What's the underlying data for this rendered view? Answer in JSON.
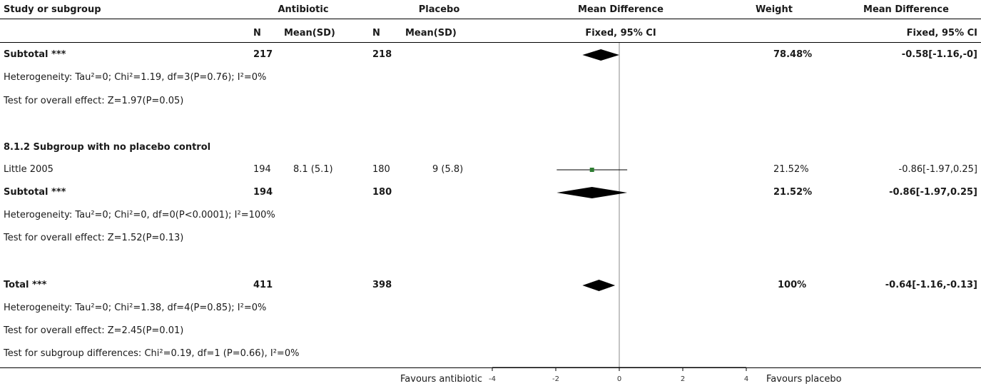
{
  "header": {
    "study_label": "Study or subgroup",
    "group1": "Antibiotic",
    "group2": "Placebo",
    "effect_title": "Mean Difference",
    "effect_sub": "Fixed, 95% CI",
    "weight_label": "Weight",
    "effect_title2": "Mean Difference",
    "effect_sub2": "Fixed, 95% CI",
    "n1": "N",
    "mean1": "Mean(SD)",
    "n2": "N",
    "mean2": "Mean(SD)"
  },
  "rows": {
    "sub1": {
      "label": "Subtotal ***",
      "n1": "217",
      "n2": "218",
      "weight": "78.48%",
      "ci": "-0.58[-1.16,-0]"
    },
    "sub1_het": "Heterogeneity: Tau²=0; Chi²=1.19, df=3(P=0.76); I²=0%",
    "sub1_test": "Test for overall effect: Z=1.97(P=0.05)",
    "group2_heading": "8.1.2 Subgroup with no placebo control",
    "study": {
      "label": "Little 2005",
      "n1": "194",
      "mean1": "8.1 (5.1)",
      "n2": "180",
      "mean2": "9 (5.8)",
      "weight": "21.52%",
      "ci": "-0.86[-1.97,0.25]"
    },
    "sub2": {
      "label": "Subtotal ***",
      "n1": "194",
      "n2": "180",
      "weight": "21.52%",
      "ci": "-0.86[-1.97,0.25]"
    },
    "sub2_het": "Heterogeneity: Tau²=0; Chi²=0, df=0(P<0.0001); I²=100%",
    "sub2_test": "Test for overall effect: Z=1.52(P=0.13)",
    "total": {
      "label": "Total ***",
      "n1": "411",
      "n2": "398",
      "weight": "100%",
      "ci": "-0.64[-1.16,-0.13]"
    },
    "total_het": "Heterogeneity: Tau²=0; Chi²=1.38, df=4(P=0.85); I²=0%",
    "total_test": "Test for overall effect: Z=2.45(P=0.01)",
    "subgroup_diff": "Test for subgroup differences: Chi²=0.19, df=1 (P=0.66), I²=0%"
  },
  "footer": {
    "favours_left": "Favours antibiotic",
    "favours_right": "Favours placebo"
  },
  "chart_data": {
    "type": "forest",
    "x_ticks": [
      -4,
      -2,
      0,
      2,
      4
    ],
    "xlim": [
      -4,
      4
    ],
    "reference_line": 0,
    "study_color": "#2e7d32",
    "diamond_color": "#000000",
    "studies": [
      {
        "name": "Little 2005",
        "md": -0.86,
        "lower": -1.97,
        "upper": 0.25,
        "weight": 21.52
      }
    ],
    "diamonds": [
      {
        "name": "Subtotal *** (subgroup 1)",
        "md": -0.58,
        "lower": -1.16,
        "upper": 0
      },
      {
        "name": "Subtotal *** (8.1.2)",
        "md": -0.86,
        "lower": -1.97,
        "upper": 0.25
      },
      {
        "name": "Total ***",
        "md": -0.64,
        "lower": -1.16,
        "upper": -0.13
      }
    ]
  }
}
